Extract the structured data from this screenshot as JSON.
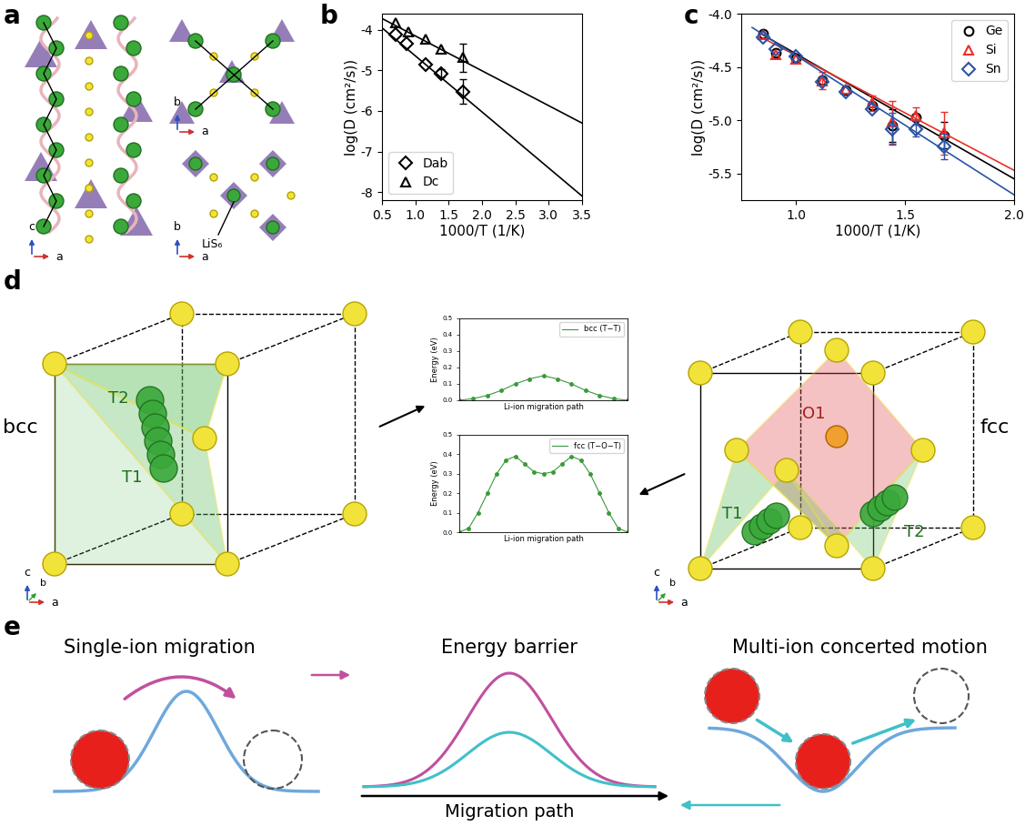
{
  "panel_labels": [
    "a",
    "b",
    "c",
    "d",
    "e"
  ],
  "panel_a": {
    "label": "LiS₆",
    "axes": [
      [
        "a",
        "c"
      ],
      [
        "a",
        "b"
      ],
      [
        "a",
        "b"
      ]
    ]
  },
  "chart_data": [
    {
      "type": "scatter",
      "xlabel": "1000/T (1/K)",
      "ylabel": "log(D (cm²/s))",
      "xlim": [
        0.5,
        3.5
      ],
      "xticks": [
        0.5,
        1.0,
        1.5,
        2.0,
        2.5,
        3.0,
        3.5
      ],
      "ylim": [
        -8.2,
        -3.6
      ],
      "yticks": [
        -8,
        -7,
        -6,
        -5,
        -4
      ],
      "legend": "lower left",
      "grid": false,
      "series": [
        {
          "name": "Dab",
          "color": "#000000",
          "marker": "diamond",
          "x": [
            0.71,
            0.87,
            1.15,
            1.39,
            1.72
          ],
          "values": [
            -4.12,
            -4.35,
            -4.85,
            -5.07,
            -5.52
          ],
          "errors": [
            null,
            null,
            null,
            0.1,
            0.3
          ],
          "fit": {
            "x": [
              0.5,
              3.5
            ],
            "values": [
              -3.95,
              -8.1
            ]
          }
        },
        {
          "name": "Dc",
          "color": "#000000",
          "marker": "triangle",
          "x": [
            0.71,
            0.9,
            1.15,
            1.39,
            1.72
          ],
          "values": [
            -3.82,
            -4.05,
            -4.22,
            -4.48,
            -4.68
          ],
          "errors": [
            null,
            null,
            null,
            null,
            0.35
          ],
          "fit": {
            "x": [
              0.5,
              3.5
            ],
            "values": [
              -3.72,
              -6.3
            ]
          }
        }
      ]
    },
    {
      "type": "scatter",
      "xlabel": "1000/T (1/K)",
      "ylabel": "log(D (cm²/s))",
      "xlim": [
        0.75,
        2.0
      ],
      "xticks": [
        1.0,
        1.5,
        2.0
      ],
      "ylim": [
        -5.75,
        -4.0
      ],
      "yticks": [
        -5.5,
        -5.0,
        -4.5,
        -4.0
      ],
      "legend": "upper right",
      "grid": false,
      "series": [
        {
          "name": "Ge",
          "color": "#000000",
          "marker": "circle",
          "x": [
            0.85,
            0.91,
            1.0,
            1.12,
            1.23,
            1.35,
            1.44,
            1.55,
            1.68
          ],
          "values": [
            -4.19,
            -4.37,
            -4.42,
            -4.62,
            -4.72,
            -4.86,
            -5.05,
            -4.97,
            -5.14
          ],
          "errors": [
            null,
            null,
            null,
            null,
            null,
            null,
            0.15,
            null,
            0.12
          ],
          "fit": {
            "x": [
              0.85,
              2.0
            ],
            "values": [
              -4.2,
              -5.55
            ]
          }
        },
        {
          "name": "Si",
          "color": "#e8302a",
          "marker": "triangle",
          "x": [
            0.85,
            0.91,
            1.0,
            1.12,
            1.23,
            1.35,
            1.44,
            1.55,
            1.68
          ],
          "values": [
            -4.2,
            -4.38,
            -4.43,
            -4.63,
            -4.71,
            -4.84,
            -5.02,
            -4.96,
            -5.12
          ],
          "errors": [
            null,
            null,
            null,
            0.08,
            null,
            0.07,
            0.2,
            0.08,
            0.2
          ],
          "fit": {
            "x": [
              0.85,
              2.0
            ],
            "values": [
              -4.23,
              -5.47
            ]
          }
        },
        {
          "name": "Sn",
          "color": "#2b54a6",
          "marker": "diamond",
          "x": [
            0.85,
            0.91,
            1.0,
            1.12,
            1.23,
            1.35,
            1.44,
            1.55,
            1.68
          ],
          "values": [
            -4.22,
            -4.33,
            -4.4,
            -4.64,
            -4.73,
            -4.9,
            -5.08,
            -5.08,
            -5.25
          ],
          "errors": [
            null,
            null,
            null,
            null,
            null,
            null,
            0.15,
            0.07,
            0.12
          ],
          "fit": {
            "x": [
              0.8,
              2.0
            ],
            "values": [
              -4.13,
              -5.7
            ]
          }
        }
      ]
    },
    {
      "type": "line",
      "xlabel": "Li-ion migration path",
      "ylabel": "Energy (eV)",
      "xlim": [
        0,
        12
      ],
      "ylim": [
        0.0,
        0.5
      ],
      "yticks": [
        0.0,
        0.1,
        0.2,
        0.3,
        0.4,
        0.5
      ],
      "tick_labels": "y",
      "legend": "upper right",
      "grid": false,
      "series": [
        {
          "name": "bcc (T−T)",
          "color": "#3a9a3a",
          "marker": "circle",
          "x": [
            0,
            1,
            2,
            3,
            4,
            5,
            6,
            7,
            8,
            9,
            10,
            11,
            12
          ],
          "values": [
            0.0,
            0.01,
            0.03,
            0.06,
            0.1,
            0.13,
            0.15,
            0.13,
            0.1,
            0.06,
            0.03,
            0.01,
            0.0
          ]
        }
      ]
    },
    {
      "type": "line",
      "xlabel": "Li-ion migration path",
      "ylabel": "Energy (eV)",
      "xlim": [
        0,
        18
      ],
      "ylim": [
        0.0,
        0.5
      ],
      "yticks": [
        0.0,
        0.1,
        0.2,
        0.3,
        0.4,
        0.5
      ],
      "tick_labels": "y",
      "legend": "upper right",
      "grid": false,
      "series": [
        {
          "name": "fcc (T−O−T)",
          "color": "#3a9a3a",
          "marker": "circle",
          "x": [
            0,
            1,
            2,
            3,
            4,
            5,
            6,
            7,
            8,
            9,
            10,
            11,
            12,
            13,
            14,
            15,
            16,
            17,
            18
          ],
          "values": [
            0.0,
            0.02,
            0.1,
            0.2,
            0.3,
            0.37,
            0.39,
            0.35,
            0.31,
            0.3,
            0.31,
            0.35,
            0.39,
            0.37,
            0.3,
            0.2,
            0.1,
            0.02,
            0.0
          ]
        }
      ]
    }
  ],
  "panel_d": {
    "bcc": {
      "label": "bcc",
      "sites": [
        "T1",
        "T2"
      ],
      "axes": [
        "a",
        "b",
        "c"
      ]
    },
    "fcc": {
      "label": "fcc",
      "sites": [
        "T1",
        "T2",
        "O1"
      ],
      "axes": [
        "a",
        "b",
        "c"
      ]
    }
  },
  "panel_e": {
    "titles": [
      "Single-ion migration",
      "Energy barrier",
      "Multi-ion concerted motion"
    ],
    "xlabel": "Migration path"
  }
}
